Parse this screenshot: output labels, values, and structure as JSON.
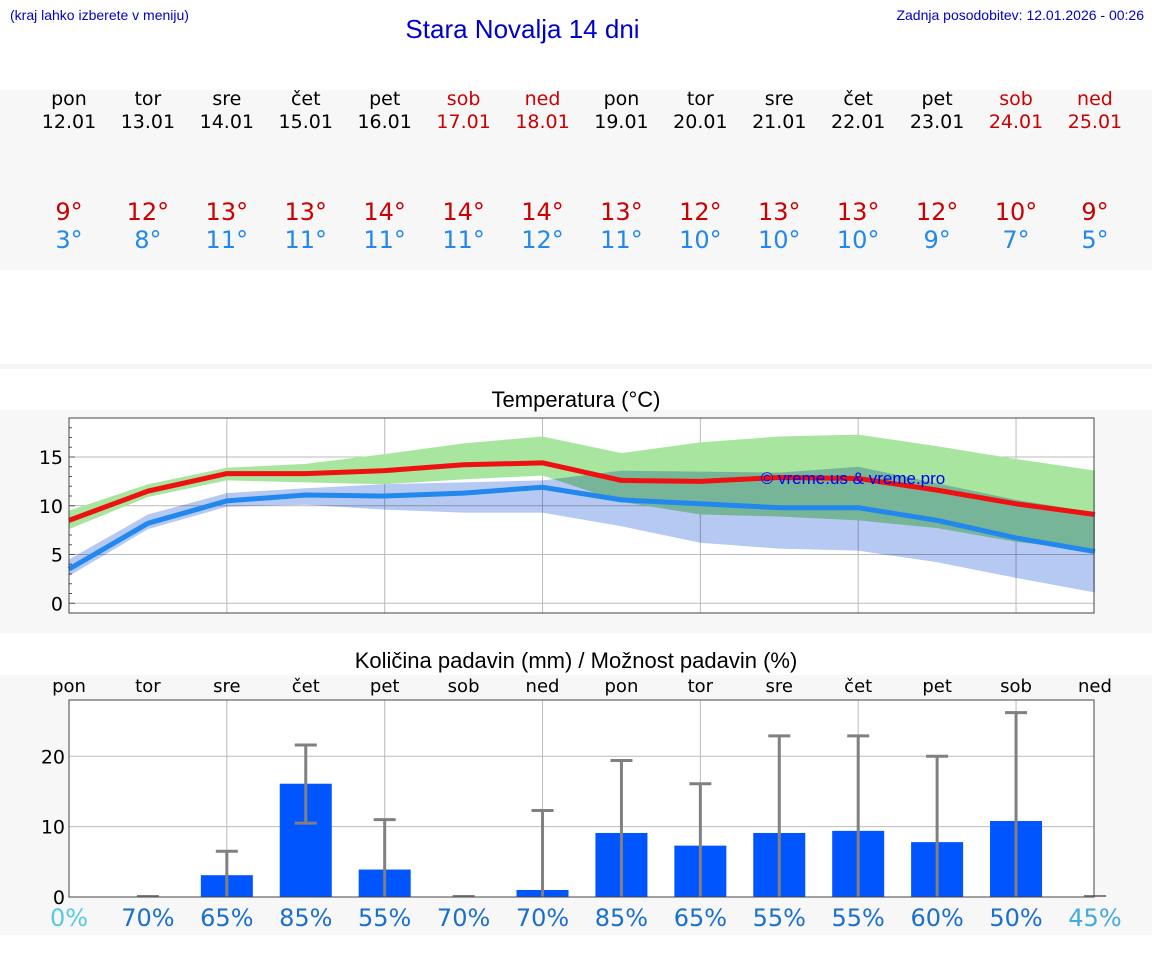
{
  "header": {
    "hint": "(kraj lahko izberete v meniju)",
    "title": "Stara Novalja 14 dni",
    "updated": "Zadnja posodobitev: 12.01.2026 - 00:26"
  },
  "days": [
    {
      "name": "pon",
      "date": "12.01",
      "max": "9°",
      "min": "3°",
      "icon": "sun-cloud-icon",
      "weekend": false
    },
    {
      "name": "tor",
      "date": "13.01",
      "max": "12°",
      "min": "8°",
      "icon": "cloud-icon",
      "weekend": false
    },
    {
      "name": "sre",
      "date": "14.01",
      "max": "13°",
      "min": "11°",
      "icon": "sun-cloud-rain-icon",
      "weekend": false
    },
    {
      "name": "čet",
      "date": "15.01",
      "max": "13°",
      "min": "11°",
      "icon": "sun-cloud-rain-icon",
      "weekend": false
    },
    {
      "name": "pet",
      "date": "16.01",
      "max": "14°",
      "min": "11°",
      "icon": "sun-cloud-rain-icon",
      "weekend": false
    },
    {
      "name": "sob",
      "date": "17.01",
      "max": "14°",
      "min": "11°",
      "icon": "sun-cloud-icon",
      "weekend": true
    },
    {
      "name": "ned",
      "date": "18.01",
      "max": "14°",
      "min": "12°",
      "icon": "sun-cloud-rain-icon",
      "weekend": true
    },
    {
      "name": "pon",
      "date": "19.01",
      "max": "13°",
      "min": "11°",
      "icon": "cloud-rain-icon",
      "weekend": false
    },
    {
      "name": "tor",
      "date": "20.01",
      "max": "12°",
      "min": "10°",
      "icon": "cloud-rain-icon",
      "weekend": false
    },
    {
      "name": "sre",
      "date": "21.01",
      "max": "13°",
      "min": "10°",
      "icon": "cloud-rain-icon",
      "weekend": false
    },
    {
      "name": "čet",
      "date": "22.01",
      "max": "13°",
      "min": "10°",
      "icon": "cloud-rain-icon",
      "weekend": false
    },
    {
      "name": "pet",
      "date": "23.01",
      "max": "12°",
      "min": "9°",
      "icon": "cloud-rain-icon",
      "weekend": false
    },
    {
      "name": "sob",
      "date": "24.01",
      "max": "10°",
      "min": "7°",
      "icon": "cloud-rain-icon",
      "weekend": true
    },
    {
      "name": "ned",
      "date": "25.01",
      "max": "9°",
      "min": "5°",
      "icon": "cloud-icon",
      "weekend": true
    }
  ],
  "colors": {
    "max": "#ee1111",
    "min": "#2288ee",
    "maxBand": "#a8e6a0",
    "minBand": "#a8c0f0",
    "overlap": "#7fc4a4",
    "bar": "#0055ff",
    "whisker": "#808080",
    "probDark": "#1a6fcf",
    "probLight": "#55ccdd"
  },
  "chart_data": [
    {
      "type": "line",
      "title": "Temperatura (°C)",
      "watermark": "© vreme.us & vreme.pro",
      "ylim": [
        -1,
        19
      ],
      "yticks": [
        0,
        5,
        10,
        15
      ],
      "x": [
        0,
        1,
        2,
        3,
        4,
        5,
        6,
        7,
        8,
        9,
        10,
        11,
        12,
        13
      ],
      "series": [
        {
          "name": "max",
          "values": [
            8.5,
            11.5,
            13.3,
            13.3,
            13.6,
            14.2,
            14.4,
            12.6,
            12.5,
            12.9,
            12.8,
            11.6,
            10.2,
            9.1
          ]
        },
        {
          "name": "min",
          "values": [
            3.5,
            8.2,
            10.5,
            11.1,
            11.0,
            11.3,
            11.9,
            10.6,
            10.2,
            9.8,
            9.8,
            8.5,
            6.7,
            5.3
          ]
        }
      ],
      "bands": [
        {
          "name": "max-range",
          "upper": [
            9.5,
            12.2,
            13.9,
            14.3,
            15.3,
            16.4,
            17.1,
            15.4,
            16.5,
            17.1,
            17.3,
            16.1,
            14.8,
            13.6
          ],
          "lower": [
            7.6,
            10.9,
            12.6,
            12.4,
            12.2,
            12.7,
            13.1,
            10.4,
            9.1,
            8.9,
            8.5,
            7.7,
            6.3,
            5.4
          ]
        },
        {
          "name": "min-range",
          "upper": [
            4.5,
            9.1,
            11.3,
            11.8,
            12.2,
            12.4,
            12.6,
            13.6,
            13.5,
            13.4,
            14.0,
            12.3,
            10.6,
            9.3
          ],
          "lower": [
            2.8,
            7.6,
            9.9,
            10.1,
            9.6,
            9.3,
            9.3,
            7.9,
            6.2,
            5.6,
            5.4,
            4.2,
            2.6,
            1.1
          ]
        }
      ]
    },
    {
      "type": "bar",
      "title": "Količina padavin (mm) / Možnost padavin (%)",
      "categories": [
        "pon",
        "tor",
        "sre",
        "čet",
        "pet",
        "sob",
        "ned",
        "pon",
        "tor",
        "sre",
        "čet",
        "pet",
        "sob",
        "ned"
      ],
      "values": [
        0,
        0,
        3.1,
        16.1,
        3.9,
        0,
        1.0,
        9.1,
        7.3,
        9.1,
        9.4,
        7.8,
        10.8,
        0
      ],
      "whisker_low": [
        0,
        0,
        0,
        10.5,
        0,
        0,
        0,
        0,
        0,
        0,
        0,
        0,
        0,
        0
      ],
      "whisker_high": [
        0,
        0,
        6.5,
        21.6,
        11.0,
        0,
        12.3,
        19.4,
        16.1,
        22.9,
        22.9,
        20.0,
        26.2,
        0
      ],
      "probability": [
        "0%",
        "70%",
        "65%",
        "85%",
        "55%",
        "70%",
        "70%",
        "85%",
        "65%",
        "55%",
        "55%",
        "60%",
        "50%",
        "45%"
      ],
      "ylim": [
        0,
        28
      ],
      "yticks": [
        0,
        10,
        20
      ]
    }
  ]
}
